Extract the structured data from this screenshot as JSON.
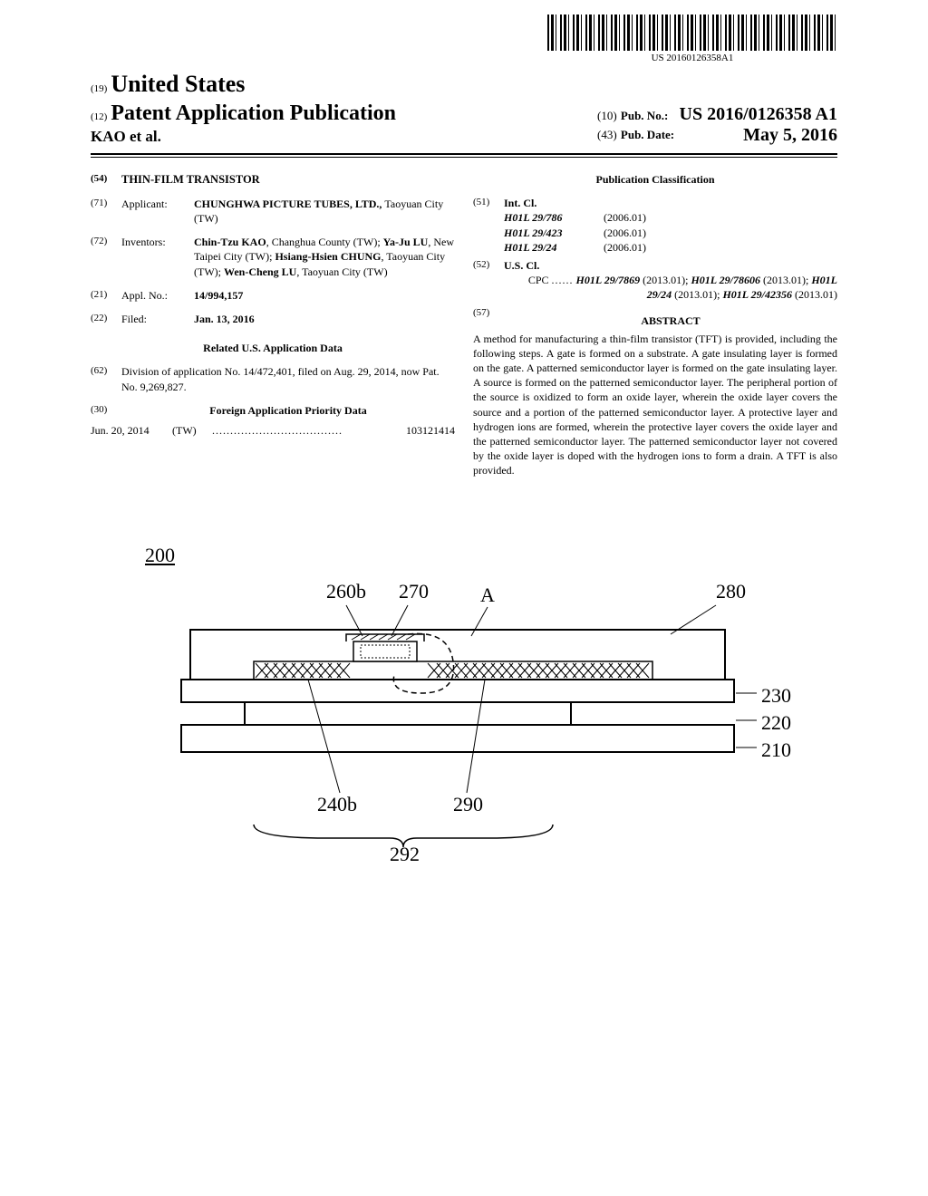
{
  "barcode_text": "US 20160126358A1",
  "header": {
    "country_code": "(19)",
    "country": "United States",
    "pub_type_code": "(12)",
    "pub_type": "Patent Application Publication",
    "authors_line": "KAO et al.",
    "pubno_code": "(10)",
    "pubno_label": "Pub. No.:",
    "pubno_value": "US 2016/0126358 A1",
    "pubdate_code": "(43)",
    "pubdate_label": "Pub. Date:",
    "pubdate_value": "May 5, 2016"
  },
  "left": {
    "title_code": "(54)",
    "title": "THIN-FILM TRANSISTOR",
    "applicant_code": "(71)",
    "applicant_label": "Applicant:",
    "applicant_value": "CHUNGHWA PICTURE TUBES, LTD., ",
    "applicant_loc": "Taoyuan City (TW)",
    "inventors_code": "(72)",
    "inventors_label": "Inventors:",
    "inventors_value": "Chin-Tzu KAO, Changhua County (TW); Ya-Ju LU, New Taipei City (TW); Hsiang-Hsien CHUNG, Taoyuan City (TW); Wen-Cheng LU, Taoyuan City (TW)",
    "applno_code": "(21)",
    "applno_label": "Appl. No.:",
    "applno_value": "14/994,157",
    "filed_code": "(22)",
    "filed_label": "Filed:",
    "filed_value": "Jan. 13, 2016",
    "related_heading": "Related U.S. Application Data",
    "division_code": "(62)",
    "division_text": "Division of application No. 14/472,401, filed on Aug. 29, 2014, now Pat. No. 9,269,827.",
    "foreign_code": "(30)",
    "foreign_heading": "Foreign Application Priority Data",
    "foreign_date": "Jun. 20, 2014",
    "foreign_country": "(TW)",
    "foreign_dots": "....................................",
    "foreign_num": "103121414"
  },
  "right": {
    "classification_heading": "Publication Classification",
    "intcl_code": "(51)",
    "intcl_label": "Int. Cl.",
    "intcl": [
      {
        "cls": "H01L 29/786",
        "ver": "(2006.01)"
      },
      {
        "cls": "H01L 29/423",
        "ver": "(2006.01)"
      },
      {
        "cls": "H01L 29/24",
        "ver": "(2006.01)"
      }
    ],
    "uscl_code": "(52)",
    "uscl_label": "U.S. Cl.",
    "cpc_prefix": "CPC",
    "cpc_dots": "......",
    "cpc_items": "H01L 29/7869 (2013.01); H01L 29/78606 (2013.01); H01L 29/24 (2013.01); H01L 29/42356 (2013.01)",
    "abstract_code": "(57)",
    "abstract_label": "ABSTRACT",
    "abstract_text": "A method for manufacturing a thin-film transistor (TFT) is provided, including the following steps. A gate is formed on a substrate. A gate insulating layer is formed on the gate. A patterned semiconductor layer is formed on the gate insulating layer. A source is formed on the patterned semiconductor layer. The peripheral portion of the source is oxidized to form an oxide layer, wherein the oxide layer covers the source and a portion of the patterned semiconductor layer. A protective layer and hydrogen ions are formed, wherein the protective layer covers the oxide layer and the patterned semiconductor layer. The patterned semiconductor layer not covered by the oxide layer is doped with the hydrogen ions to form a drain. A TFT is also provided."
  },
  "figure": {
    "ref_main": "200",
    "labels": {
      "260b": "260b",
      "270": "270",
      "A": "A",
      "280": "280",
      "230": "230",
      "220": "220",
      "210": "210",
      "240b": "240b",
      "290": "290",
      "292": "292"
    },
    "colors": {
      "stroke": "#000000",
      "fill": "#ffffff"
    }
  }
}
